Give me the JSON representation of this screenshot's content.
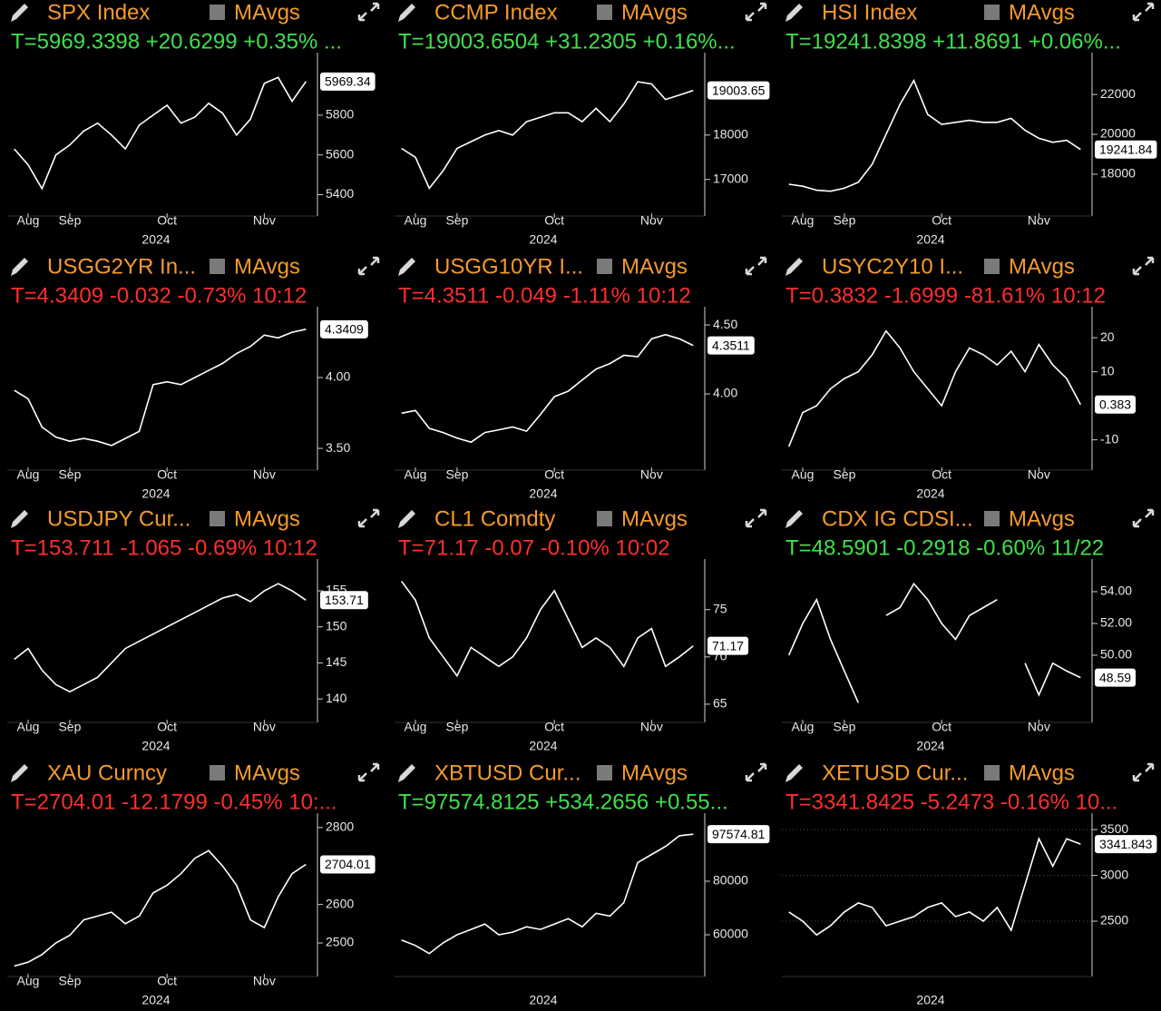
{
  "chart_data": [
    {
      "type": "line",
      "title": "SPX Index",
      "button": "MAvgs",
      "subtitle": "T=5969.3398 +20.6299 +0.35% ...",
      "subtitle_color": "#3fe04c",
      "color": "#ffffff",
      "grid": false,
      "categories": [
        null,
        "Aug",
        null,
        null,
        "Sep",
        null,
        null,
        null,
        null,
        null,
        null,
        "Oct",
        null,
        null,
        null,
        null,
        null,
        null,
        "Nov",
        null,
        null,
        null
      ],
      "x_label": "2024",
      "values": [
        5630,
        5550,
        5430,
        5600,
        5650,
        5720,
        5760,
        5700,
        5630,
        5750,
        5800,
        5850,
        5760,
        5790,
        5860,
        5810,
        5700,
        5780,
        5960,
        5990,
        5870,
        5969.34
      ],
      "last_value": 5969.34,
      "ylim": [
        5320,
        6060
      ],
      "yticks": [
        5400,
        5600,
        5800
      ]
    },
    {
      "type": "line",
      "title": "CCMP Index",
      "button": "MAvgs",
      "subtitle": "T=19003.6504 +31.2305 +0.16%...",
      "subtitle_color": "#3fe04c",
      "color": "#ffffff",
      "grid": false,
      "categories": [
        null,
        "Aug",
        null,
        null,
        "Sep",
        null,
        null,
        null,
        null,
        null,
        null,
        "Oct",
        null,
        null,
        null,
        null,
        null,
        null,
        "Nov",
        null,
        null,
        null
      ],
      "x_label": "2024",
      "values": [
        17700,
        17500,
        16800,
        17200,
        17700,
        17850,
        18000,
        18100,
        18000,
        18300,
        18400,
        18500,
        18500,
        18300,
        18600,
        18300,
        18700,
        19200,
        19150,
        18800,
        18900,
        19003.65
      ],
      "last_value": 19003.65,
      "ylim": [
        16300,
        19610
      ],
      "yticks": [
        17000,
        18000
      ]
    },
    {
      "type": "line",
      "title": "HSI Index",
      "button": "MAvgs",
      "subtitle": "T=19241.8398 +11.8691 +0.06%...",
      "subtitle_color": "#3fe04c",
      "color": "#ffffff",
      "grid": false,
      "categories": [
        null,
        "Aug",
        null,
        null,
        "Sep",
        null,
        null,
        null,
        null,
        null,
        null,
        "Oct",
        null,
        null,
        null,
        null,
        null,
        null,
        "Nov",
        null,
        null,
        null
      ],
      "x_label": "2024",
      "values": [
        17500,
        17400,
        17200,
        17150,
        17300,
        17600,
        18500,
        20000,
        21500,
        22700,
        21000,
        20500,
        20600,
        20700,
        20600,
        20600,
        20800,
        20200,
        19800,
        19600,
        19700,
        19241.84
      ],
      "last_value": 19241.84,
      "ylim": [
        16180,
        23550
      ],
      "yticks": [
        18000,
        20000,
        22000
      ]
    },
    {
      "type": "line",
      "title": "USGG2YR In...",
      "button": "MAvgs",
      "subtitle": "T=4.3409 -0.032 -0.73% 10:12",
      "subtitle_color": "#ff2e2e",
      "color": "#ffffff",
      "grid": false,
      "categories": [
        null,
        "Aug",
        null,
        null,
        "Sep",
        null,
        null,
        null,
        null,
        null,
        null,
        "Oct",
        null,
        null,
        null,
        null,
        null,
        null,
        "Nov",
        null,
        null,
        null
      ],
      "x_label": "2024",
      "values": [
        3.91,
        3.85,
        3.65,
        3.58,
        3.55,
        3.57,
        3.55,
        3.52,
        3.57,
        3.62,
        3.95,
        3.97,
        3.95,
        4.0,
        4.05,
        4.1,
        4.17,
        4.22,
        4.3,
        4.28,
        4.32,
        4.3409
      ],
      "last_value": 4.3409,
      "ylim": [
        3.385,
        4.423
      ],
      "yticks": [
        {
          "value": 3.5,
          "label": "3.50"
        },
        {
          "value": 4,
          "label": "4.00"
        }
      ]
    },
    {
      "type": "line",
      "title": "USGG10YR I...",
      "button": "MAvgs",
      "subtitle": "T=4.3511 -0.049 -1.11% 10:12",
      "subtitle_color": "#ff2e2e",
      "color": "#ffffff",
      "grid": false,
      "categories": [
        null,
        "Aug",
        null,
        null,
        "Sep",
        null,
        null,
        null,
        null,
        null,
        null,
        "Oct",
        null,
        null,
        null,
        null,
        null,
        null,
        "Nov",
        null,
        null,
        null
      ],
      "x_label": "2024",
      "values": [
        3.86,
        3.88,
        3.75,
        3.72,
        3.68,
        3.65,
        3.72,
        3.74,
        3.76,
        3.73,
        3.85,
        3.98,
        4.02,
        4.1,
        4.18,
        4.22,
        4.28,
        4.27,
        4.4,
        4.43,
        4.4,
        4.3511
      ],
      "last_value": 4.3511,
      "ylim": [
        3.487,
        4.553
      ],
      "yticks": [
        {
          "value": 4,
          "label": "4.00"
        },
        {
          "value": 4.5,
          "label": "4.50"
        }
      ]
    },
    {
      "type": "line",
      "title": "USYC2Y10 I...",
      "button": "MAvgs",
      "subtitle": "T=0.3832 -1.6999 -81.61% 10:12",
      "subtitle_color": "#ff2e2e",
      "color": "#ffffff",
      "grid": false,
      "categories": [
        null,
        "Aug",
        null,
        null,
        "Sep",
        null,
        null,
        null,
        null,
        null,
        null,
        "Oct",
        null,
        null,
        null,
        null,
        null,
        null,
        "Nov",
        null,
        null,
        null
      ],
      "x_label": "2024",
      "values": [
        -12,
        -2,
        0,
        5,
        8,
        10,
        15,
        22,
        17,
        10,
        5,
        0,
        10,
        17,
        15,
        12,
        16,
        10,
        18,
        12,
        8,
        0.383
      ],
      "last_value": 0.383,
      "ylim": [
        -17.3,
        25.9
      ],
      "yticks": [
        -10,
        10,
        20
      ]
    },
    {
      "type": "line",
      "title": "USDJPY Cur...",
      "button": "MAvgs",
      "subtitle": "T=153.711 -1.065 -0.69% 10:12",
      "subtitle_color": "#ff2e2e",
      "color": "#ffffff",
      "grid": false,
      "categories": [
        null,
        "Aug",
        null,
        null,
        "Sep",
        null,
        null,
        null,
        null,
        null,
        null,
        "Oct",
        null,
        null,
        null,
        null,
        null,
        null,
        "Nov",
        null,
        null,
        null
      ],
      "x_label": "2024",
      "values": [
        145.5,
        147,
        144,
        142,
        141,
        142,
        143,
        145,
        147,
        148,
        149,
        150,
        151,
        152,
        153,
        154,
        154.5,
        153.5,
        155,
        156,
        155,
        153.71
      ],
      "last_value": 153.71,
      "ylim": [
        137.5,
        157.9
      ],
      "yticks": [
        140,
        145,
        150,
        155
      ]
    },
    {
      "type": "line",
      "title": "CL1 Comdty",
      "button": "MAvgs",
      "subtitle": "T=71.17 -0.07 -0.10% 10:02",
      "subtitle_color": "#ff2e2e",
      "color": "#ffffff",
      "grid": false,
      "categories": [
        null,
        "Aug",
        null,
        null,
        "Sep",
        null,
        null,
        null,
        null,
        null,
        null,
        "Oct",
        null,
        null,
        null,
        null,
        null,
        null,
        "Nov",
        null,
        null,
        null
      ],
      "x_label": "2024",
      "values": [
        78,
        76,
        72,
        70,
        68,
        71,
        70,
        69,
        70,
        72,
        75,
        77,
        74,
        71,
        72,
        71,
        69,
        72,
        73,
        69,
        70,
        71.17
      ],
      "last_value": 71.17,
      "ylim": [
        63.65,
        79.2
      ],
      "yticks": [
        65,
        70,
        75
      ]
    },
    {
      "type": "line",
      "title": "CDX IG CDSI...",
      "button": "MAvgs",
      "subtitle": "T=48.5901 -0.2918 -0.60% 11/22",
      "subtitle_color": "#3fe04c",
      "color": "#ffffff",
      "grid": false,
      "categories": [
        null,
        "Aug",
        null,
        null,
        "Sep",
        null,
        null,
        null,
        null,
        null,
        null,
        "Oct",
        null,
        null,
        null,
        null,
        null,
        null,
        "Nov",
        null,
        null,
        null
      ],
      "x_label": "2024",
      "values": [
        50,
        52,
        53.5,
        51,
        49,
        47,
        null,
        52.5,
        53,
        54.5,
        53.5,
        52,
        51,
        52.5,
        53,
        53.5,
        null,
        49.5,
        47.5,
        49.5,
        49,
        48.59
      ],
      "last_value": 48.59,
      "ylim": [
        46.11,
        55.37
      ],
      "yticks": [
        {
          "value": 50,
          "label": "50.00"
        },
        {
          "value": 52,
          "label": "52.00"
        },
        {
          "value": 54,
          "label": "54.00"
        }
      ]
    },
    {
      "type": "line",
      "title": "XAU Curncy",
      "button": "MAvgs",
      "subtitle": "T=2704.01 -12.1799 -0.45% 10:...",
      "subtitle_color": "#ff2e2e",
      "color": "#ffffff",
      "grid": false,
      "categories": [
        null,
        "Aug",
        null,
        null,
        "Sep",
        null,
        null,
        null,
        null,
        null,
        null,
        "Oct",
        null,
        null,
        null,
        null,
        null,
        null,
        "Nov",
        null,
        null,
        null
      ],
      "x_label": "2024",
      "values": [
        2440,
        2450,
        2470,
        2500,
        2520,
        2560,
        2570,
        2580,
        2550,
        2570,
        2630,
        2650,
        2680,
        2720,
        2740,
        2700,
        2650,
        2560,
        2540,
        2620,
        2680,
        2704.01
      ],
      "last_value": 2704.01,
      "ylim": [
        2427,
        2809
      ],
      "yticks": [
        2500,
        2600,
        2800
      ]
    },
    {
      "type": "line",
      "title": "XBTUSD Cur...",
      "button": "MAvgs",
      "subtitle": "T=97574.8125 +534.2656 +0.55...",
      "subtitle_color": "#3fe04c",
      "color": "#ffffff",
      "grid": false,
      "categories": [
        null,
        null,
        null,
        null,
        null,
        null,
        null,
        null,
        null,
        null,
        null,
        null,
        null,
        null,
        null,
        null,
        null,
        null,
        null,
        null,
        null,
        null
      ],
      "x_label": "2024",
      "values": [
        58000,
        56000,
        53000,
        57000,
        60000,
        62000,
        64000,
        60000,
        61000,
        63000,
        62000,
        64000,
        66000,
        63000,
        68000,
        67000,
        72000,
        87000,
        90000,
        93000,
        97000,
        97574.81
      ],
      "last_value": 97574.81,
      "ylim": [
        46441,
        101356
      ],
      "yticks": [
        60000,
        80000
      ]
    },
    {
      "type": "line",
      "title": "XETUSD Cur...",
      "button": "MAvgs",
      "subtitle": "T=3341.8425 -5.2473 -0.16% 10...",
      "subtitle_color": "#ff2e2e",
      "color": "#ffffff",
      "grid": true,
      "categories": [
        null,
        null,
        null,
        null,
        null,
        null,
        null,
        null,
        null,
        null,
        null,
        null,
        null,
        null,
        null,
        null,
        null,
        null,
        null,
        null,
        null,
        null
      ],
      "x_label": "2024",
      "values": [
        2600,
        2500,
        2350,
        2450,
        2600,
        2700,
        2650,
        2450,
        2500,
        2550,
        2650,
        2700,
        2550,
        2600,
        2500,
        2650,
        2400,
        2900,
        3400,
        3100,
        3400,
        3341.843
      ],
      "last_value": 3341.843,
      "ylim": [
        1955,
        3561
      ],
      "yticks": [
        2500,
        3000,
        3500
      ]
    }
  ]
}
